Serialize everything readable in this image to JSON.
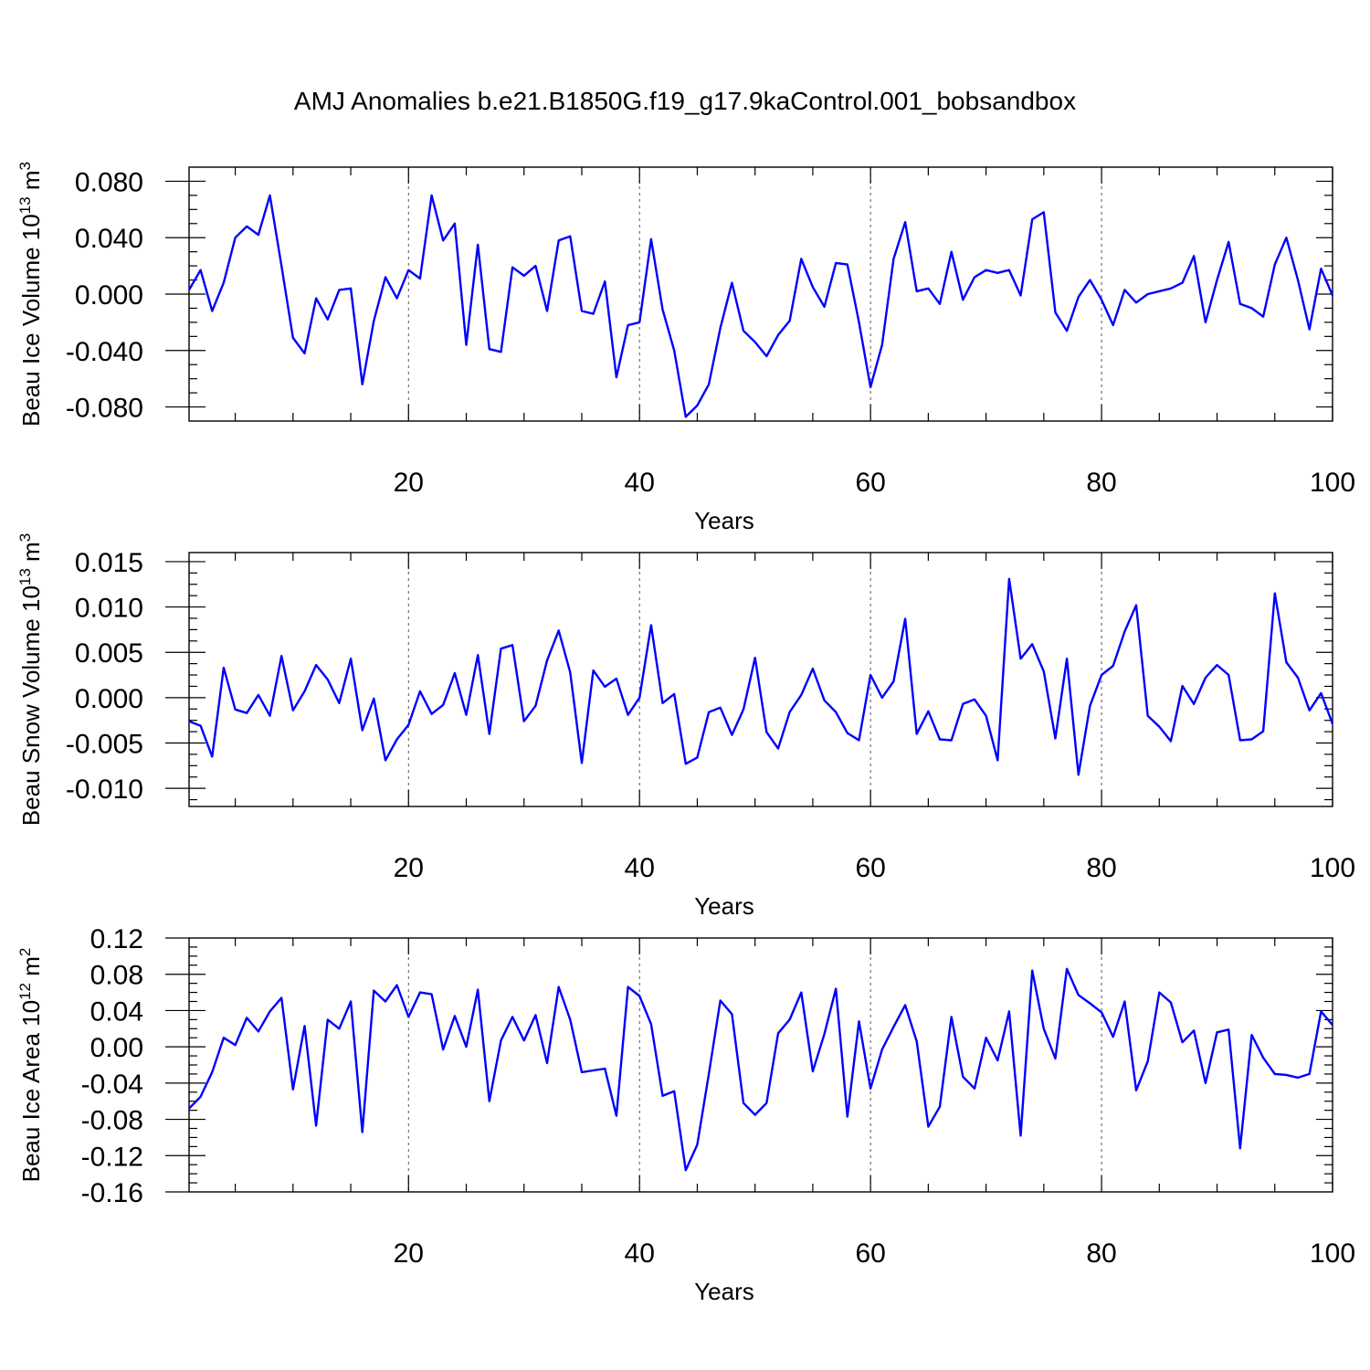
{
  "chart_data": [
    {
      "type": "line",
      "title": "AMJ Anomalies b.e21.B1850G.f19_g17.9kaControl.001_bobsandbox",
      "xlabel": "Years",
      "ylabel": "Beau Ice Volume 10",
      "ylabel_exp": "13",
      "ylabel_unit": " m",
      "ylabel_unit_exp": "3",
      "xlim": [
        1,
        100
      ],
      "ylim": [
        -0.09,
        0.09
      ],
      "xticks": [
        20,
        40,
        60,
        80,
        100
      ],
      "xtick_labels": [
        "20",
        "40",
        "60",
        "80",
        "100"
      ],
      "yticks": [
        0.08,
        0.04,
        0.0,
        -0.04,
        -0.08
      ],
      "ytick_labels": [
        "0.080",
        "0.040",
        "0.000",
        "-0.040",
        "-0.080"
      ],
      "grid": "dashed vertical at x major ticks",
      "color": "#0000ff",
      "series": [
        {
          "x": [
            1,
            2,
            3,
            4,
            5,
            6,
            7,
            8,
            9,
            10,
            11,
            12,
            13,
            14,
            15,
            16,
            17,
            18,
            19,
            20,
            21,
            22,
            23,
            24,
            25,
            26,
            27,
            28,
            29,
            30,
            31,
            32,
            33,
            34,
            35,
            36,
            37,
            38,
            39,
            40,
            41,
            42,
            43,
            44,
            45,
            46,
            47,
            48,
            49,
            50,
            51,
            52,
            53,
            54,
            55,
            56,
            57,
            58,
            59,
            60,
            61,
            62,
            63,
            64,
            65,
            66,
            67,
            68,
            69,
            70,
            71,
            72,
            73,
            74,
            75,
            76,
            77,
            78,
            79,
            80,
            81,
            82,
            83,
            84,
            85,
            86,
            87,
            88,
            89,
            90,
            91,
            92,
            93,
            94,
            95,
            96,
            97,
            98,
            99,
            100
          ],
          "values": [
            0.003,
            0.017,
            -0.012,
            0.008,
            0.04,
            0.048,
            0.042,
            0.07,
            0.02,
            -0.031,
            -0.042,
            -0.003,
            -0.018,
            0.003,
            0.004,
            -0.064,
            -0.019,
            0.012,
            -0.003,
            0.017,
            0.011,
            0.07,
            0.038,
            0.05,
            -0.036,
            0.035,
            -0.039,
            -0.041,
            0.019,
            0.013,
            0.02,
            -0.012,
            0.038,
            0.041,
            -0.012,
            -0.014,
            0.009,
            -0.059,
            -0.022,
            -0.02,
            0.039,
            -0.011,
            -0.04,
            -0.087,
            -0.079,
            -0.064,
            -0.024,
            0.008,
            -0.026,
            -0.034,
            -0.044,
            -0.029,
            -0.019,
            0.025,
            0.005,
            -0.009,
            0.022,
            0.021,
            -0.02,
            -0.066,
            -0.036,
            0.025,
            0.051,
            0.002,
            0.004,
            -0.007,
            0.03,
            -0.004,
            0.012,
            0.017,
            0.015,
            0.017,
            -0.001,
            0.053,
            0.058,
            -0.013,
            -0.026,
            -0.002,
            0.01,
            -0.004,
            -0.022,
            0.003,
            -0.006,
            0.0,
            0.002,
            0.004,
            0.008,
            0.027,
            -0.02,
            0.01,
            0.037,
            -0.007,
            -0.01,
            -0.016,
            0.021,
            0.04,
            0.01,
            -0.025,
            0.018,
            -0.001
          ]
        }
      ]
    },
    {
      "type": "line",
      "title": "",
      "xlabel": "Years",
      "ylabel": "Beau Snow Volume 10",
      "ylabel_exp": "13",
      "ylabel_unit": " m",
      "ylabel_unit_exp": "3",
      "xlim": [
        1,
        100
      ],
      "ylim": [
        -0.012,
        0.016
      ],
      "xticks": [
        20,
        40,
        60,
        80,
        100
      ],
      "xtick_labels": [
        "20",
        "40",
        "60",
        "80",
        "100"
      ],
      "yticks": [
        0.015,
        0.01,
        0.005,
        0.0,
        -0.005,
        -0.01
      ],
      "ytick_labels": [
        "0.015",
        "0.010",
        "0.005",
        "0.000",
        "-0.005",
        "-0.010"
      ],
      "grid": "dashed vertical at x major ticks",
      "color": "#0000ff",
      "series": [
        {
          "x": [
            1,
            2,
            3,
            4,
            5,
            6,
            7,
            8,
            9,
            10,
            11,
            12,
            13,
            14,
            15,
            16,
            17,
            18,
            19,
            20,
            21,
            22,
            23,
            24,
            25,
            26,
            27,
            28,
            29,
            30,
            31,
            32,
            33,
            34,
            35,
            36,
            37,
            38,
            39,
            40,
            41,
            42,
            43,
            44,
            45,
            46,
            47,
            48,
            49,
            50,
            51,
            52,
            53,
            54,
            55,
            56,
            57,
            58,
            59,
            60,
            61,
            62,
            63,
            64,
            65,
            66,
            67,
            68,
            69,
            70,
            71,
            72,
            73,
            74,
            75,
            76,
            77,
            78,
            79,
            80,
            81,
            82,
            83,
            84,
            85,
            86,
            87,
            88,
            89,
            90,
            91,
            92,
            93,
            94,
            95,
            96,
            97,
            98,
            99,
            100
          ],
          "values": [
            -0.0026,
            -0.0031,
            -0.0065,
            0.0033,
            -0.0013,
            -0.0017,
            0.0003,
            -0.002,
            0.0046,
            -0.0014,
            0.0007,
            0.0036,
            0.002,
            -0.0006,
            0.0043,
            -0.0036,
            -0.0001,
            -0.0069,
            -0.0046,
            -0.003,
            0.0007,
            -0.0018,
            -0.0008,
            0.0027,
            -0.0019,
            0.0047,
            -0.004,
            0.0054,
            0.0058,
            -0.0026,
            -0.0009,
            0.0041,
            0.0074,
            0.0028,
            -0.0072,
            0.003,
            0.0012,
            0.0021,
            -0.0019,
            0.0,
            0.008,
            -0.0006,
            0.0004,
            -0.0073,
            -0.0066,
            -0.0016,
            -0.0011,
            -0.0041,
            -0.0013,
            0.0044,
            -0.0038,
            -0.0056,
            -0.0016,
            0.0003,
            0.0032,
            -0.0003,
            -0.0016,
            -0.0039,
            -0.0047,
            0.0025,
            0.0,
            0.0018,
            0.0087,
            -0.004,
            -0.0015,
            -0.0046,
            -0.0047,
            -0.0007,
            -0.0002,
            -0.002,
            -0.0069,
            0.0131,
            0.0043,
            0.0059,
            0.0029,
            -0.0045,
            0.0043,
            -0.0085,
            -0.0009,
            0.0025,
            0.0035,
            0.0073,
            0.0102,
            -0.002,
            -0.0032,
            -0.0048,
            0.0013,
            -0.0007,
            0.0022,
            0.0036,
            0.0025,
            -0.0047,
            -0.0046,
            -0.0037,
            0.0115,
            0.0039,
            0.0022,
            -0.0014,
            0.0005,
            -0.0029
          ]
        }
      ]
    },
    {
      "type": "line",
      "title": "",
      "xlabel": "Years",
      "ylabel": "Beau Ice Area 10",
      "ylabel_exp": "12",
      "ylabel_unit": " m",
      "ylabel_unit_exp": "2",
      "xlim": [
        1,
        100
      ],
      "ylim": [
        -0.16,
        0.12
      ],
      "xticks": [
        20,
        40,
        60,
        80,
        100
      ],
      "xtick_labels": [
        "20",
        "40",
        "60",
        "80",
        "100"
      ],
      "yticks": [
        0.12,
        0.08,
        0.04,
        0.0,
        -0.04,
        -0.08,
        -0.12,
        -0.16
      ],
      "ytick_labels": [
        "0.12",
        "0.08",
        "0.04",
        "0.00",
        "-0.04",
        "-0.08",
        "-0.12",
        "-0.16"
      ],
      "grid": "dashed vertical at x major ticks",
      "color": "#0000ff",
      "series": [
        {
          "x": [
            1,
            2,
            3,
            4,
            5,
            6,
            7,
            8,
            9,
            10,
            11,
            12,
            13,
            14,
            15,
            16,
            17,
            18,
            19,
            20,
            21,
            22,
            23,
            24,
            25,
            26,
            27,
            28,
            29,
            30,
            31,
            32,
            33,
            34,
            35,
            36,
            37,
            38,
            39,
            40,
            41,
            42,
            43,
            44,
            45,
            46,
            47,
            48,
            49,
            50,
            51,
            52,
            53,
            54,
            55,
            56,
            57,
            58,
            59,
            60,
            61,
            62,
            63,
            64,
            65,
            66,
            67,
            68,
            69,
            70,
            71,
            72,
            73,
            74,
            75,
            76,
            77,
            78,
            79,
            80,
            81,
            82,
            83,
            84,
            85,
            86,
            87,
            88,
            89,
            90,
            91,
            92,
            93,
            94,
            95,
            96,
            97,
            98,
            99,
            100
          ],
          "values": [
            -0.068,
            -0.055,
            -0.028,
            0.01,
            0.002,
            0.032,
            0.017,
            0.039,
            0.054,
            -0.047,
            0.023,
            -0.087,
            0.03,
            0.02,
            0.05,
            -0.094,
            0.062,
            0.05,
            0.068,
            0.033,
            0.06,
            0.058,
            -0.003,
            0.034,
            0.0,
            0.063,
            -0.06,
            0.007,
            0.033,
            0.007,
            0.035,
            -0.018,
            0.066,
            0.03,
            -0.028,
            -0.026,
            -0.024,
            -0.076,
            0.066,
            0.056,
            0.025,
            -0.054,
            -0.049,
            -0.136,
            -0.108,
            -0.03,
            0.051,
            0.036,
            -0.062,
            -0.075,
            -0.062,
            0.015,
            0.03,
            0.06,
            -0.027,
            0.014,
            0.064,
            -0.077,
            0.028,
            -0.046,
            -0.003,
            0.022,
            0.046,
            0.006,
            -0.088,
            -0.066,
            0.033,
            -0.033,
            -0.046,
            0.01,
            -0.015,
            0.039,
            -0.098,
            0.084,
            0.02,
            -0.013,
            0.086,
            0.057,
            0.048,
            0.038,
            0.011,
            0.05,
            -0.048,
            -0.016,
            0.06,
            0.049,
            0.005,
            0.018,
            -0.04,
            0.016,
            0.019,
            -0.112,
            0.013,
            -0.012,
            -0.03,
            -0.031,
            -0.034,
            -0.03,
            0.039,
            0.024
          ]
        }
      ]
    }
  ]
}
